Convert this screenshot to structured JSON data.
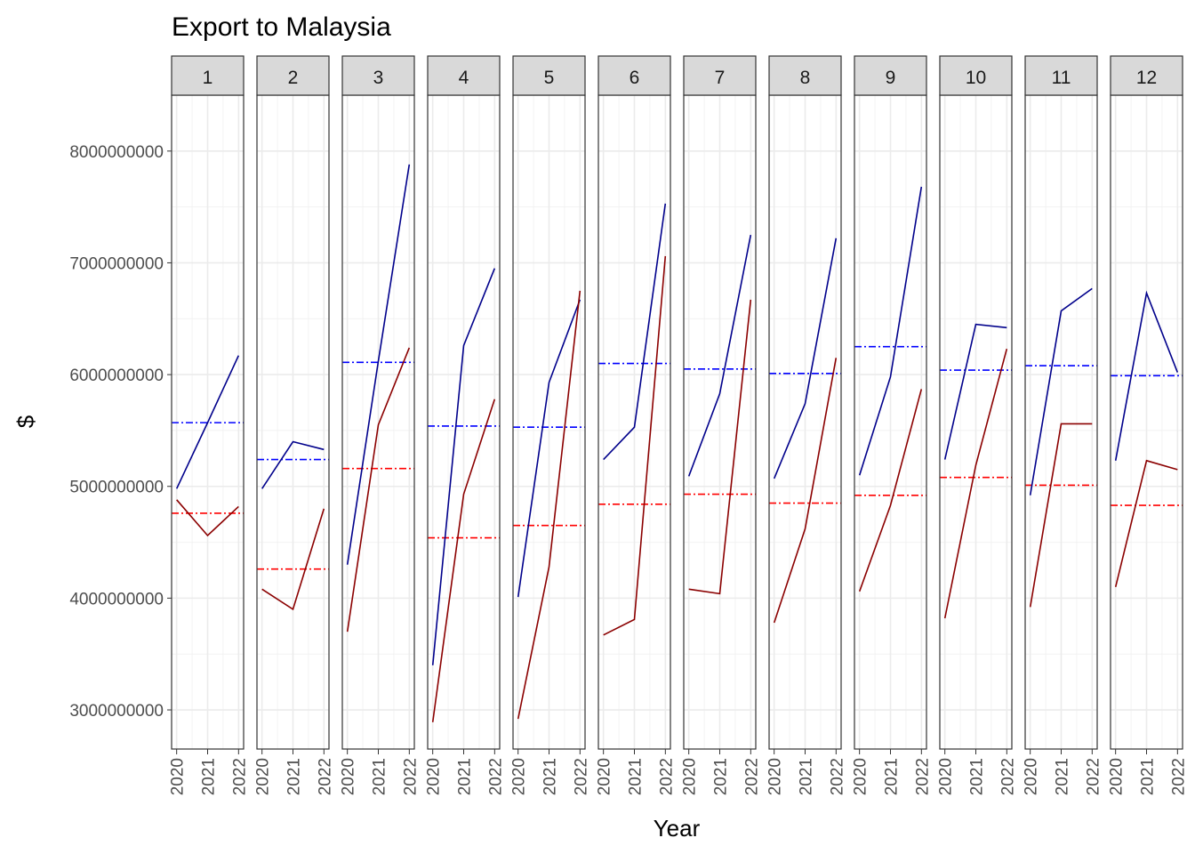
{
  "chart_data": {
    "type": "line",
    "title": "Export to Malaysia",
    "xlabel": "Year",
    "ylabel": "$",
    "x": [
      2020,
      2021,
      2022
    ],
    "xticks": [
      "2020",
      "2021",
      "2022"
    ],
    "ylim": [
      2650000000,
      8500000000
    ],
    "yticks": [
      3000000000,
      4000000000,
      5000000000,
      6000000000,
      7000000000,
      8000000000
    ],
    "ytick_labels": [
      "3000000000",
      "4000000000",
      "5000000000",
      "6000000000",
      "7000000000",
      "8000000000"
    ],
    "facet_by": "month",
    "colors": {
      "series_a": "#00008B",
      "series_a_mean": "#0000FF",
      "series_b": "#8B0000",
      "series_b_mean": "#FF0000"
    },
    "grid": true,
    "legend": "none",
    "panels": [
      {
        "label": "1",
        "series": [
          {
            "values": [
              4980000000,
              5570000000,
              6170000000
            ],
            "mean": 5570000000
          },
          {
            "values": [
              4880000000,
              4560000000,
              4820000000
            ],
            "mean": 4760000000
          }
        ]
      },
      {
        "label": "2",
        "series": [
          {
            "values": [
              4980000000,
              5400000000,
              5330000000
            ],
            "mean": 5240000000
          },
          {
            "values": [
              4080000000,
              3900000000,
              4800000000
            ],
            "mean": 4260000000
          }
        ]
      },
      {
        "label": "3",
        "series": [
          {
            "values": [
              4300000000,
              6120000000,
              7880000000
            ],
            "mean": 6110000000
          },
          {
            "values": [
              3700000000,
              5550000000,
              6240000000
            ],
            "mean": 5160000000
          }
        ]
      },
      {
        "label": "4",
        "series": [
          {
            "values": [
              3400000000,
              6260000000,
              6950000000
            ],
            "mean": 5540000000
          },
          {
            "values": [
              2890000000,
              4930000000,
              5780000000
            ],
            "mean": 4540000000
          }
        ]
      },
      {
        "label": "5",
        "series": [
          {
            "values": [
              4010000000,
              5930000000,
              6670000000
            ],
            "mean": 5530000000
          },
          {
            "values": [
              2920000000,
              4280000000,
              6750000000
            ],
            "mean": 4650000000
          }
        ]
      },
      {
        "label": "6",
        "series": [
          {
            "values": [
              5240000000,
              5530000000,
              7530000000
            ],
            "mean": 6100000000
          },
          {
            "values": [
              3670000000,
              3810000000,
              7060000000
            ],
            "mean": 4840000000
          }
        ]
      },
      {
        "label": "7",
        "series": [
          {
            "values": [
              5090000000,
              5830000000,
              7250000000
            ],
            "mean": 6050000000
          },
          {
            "values": [
              4080000000,
              4040000000,
              6670000000
            ],
            "mean": 4930000000
          }
        ]
      },
      {
        "label": "8",
        "series": [
          {
            "values": [
              5070000000,
              5740000000,
              7220000000
            ],
            "mean": 6010000000
          },
          {
            "values": [
              3780000000,
              4620000000,
              6150000000
            ],
            "mean": 4850000000
          }
        ]
      },
      {
        "label": "9",
        "series": [
          {
            "values": [
              5100000000,
              5980000000,
              7680000000
            ],
            "mean": 6250000000
          },
          {
            "values": [
              4060000000,
              4830000000,
              5870000000
            ],
            "mean": 4920000000
          }
        ]
      },
      {
        "label": "10",
        "series": [
          {
            "values": [
              5240000000,
              6450000000,
              6420000000
            ],
            "mean": 6040000000
          },
          {
            "values": [
              3820000000,
              5190000000,
              6230000000
            ],
            "mean": 5080000000
          }
        ]
      },
      {
        "label": "11",
        "series": [
          {
            "values": [
              4920000000,
              6570000000,
              6770000000
            ],
            "mean": 6080000000
          },
          {
            "values": [
              3920000000,
              5560000000,
              5560000000
            ],
            "mean": 5010000000
          }
        ]
      },
      {
        "label": "12",
        "series": [
          {
            "values": [
              5230000000,
              6730000000,
              6020000000
            ],
            "mean": 5990000000
          },
          {
            "values": [
              4100000000,
              5230000000,
              5150000000
            ],
            "mean": 4830000000
          }
        ]
      }
    ]
  }
}
